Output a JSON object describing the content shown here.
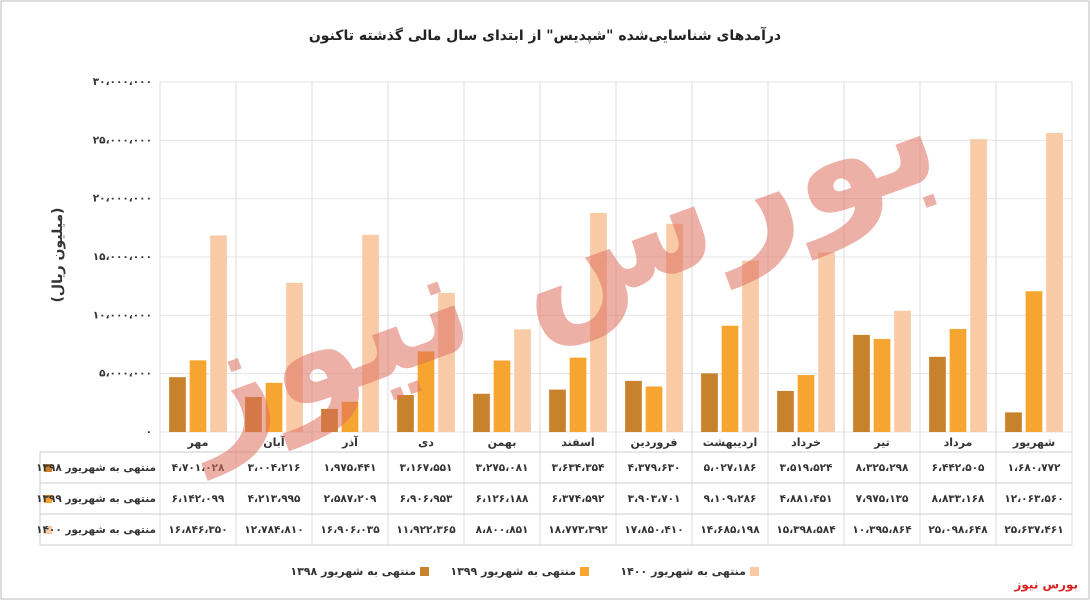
{
  "chart_data": {
    "type": "bar",
    "title": "درآمدهای شناسایی‌شده \"شپدیس\" از ابتدای سال مالی گذشته تاکنون",
    "y_label": "(میلیون ریال)",
    "watermark": "بورس نیوز",
    "source": "بورس نیوز",
    "categories": [
      "مهر",
      "آبان",
      "آذر",
      "دی",
      "بهمن",
      "اسفند",
      "فروردین",
      "اردیبهشت",
      "خرداد",
      "تیر",
      "مرداد",
      "شهریور"
    ],
    "series": [
      {
        "name": "منتهی به شهریور ۱۳۹۸",
        "color": "#c9822c",
        "values": [
          4701028,
          3004216,
          1975441,
          3167551,
          3275081,
          3634354,
          4379630,
          5027186,
          3519524,
          8325298,
          6442505,
          1680772
        ],
        "value_labels": [
          "۴،۷۰۱،۰۲۸",
          "۳،۰۰۴،۲۱۶",
          "۱،۹۷۵،۴۴۱",
          "۳،۱۶۷،۵۵۱",
          "۳،۲۷۵،۰۸۱",
          "۳،۶۳۴،۳۵۴",
          "۴،۳۷۹،۶۳۰",
          "۵،۰۲۷،۱۸۶",
          "۳،۵۱۹،۵۲۴",
          "۸،۳۲۵،۲۹۸",
          "۶،۴۴۲،۵۰۵",
          "۱،۶۸۰،۷۷۲"
        ]
      },
      {
        "name": "منتهی به شهریور ۱۳۹۹",
        "color": "#f5a530",
        "values": [
          6142099,
          4213995,
          2587209,
          6906953,
          6126188,
          6374592,
          3903701,
          9109286,
          4881451,
          7975135,
          8833168,
          12063560
        ],
        "value_labels": [
          "۶،۱۴۲،۰۹۹",
          "۴،۲۱۳،۹۹۵",
          "۲،۵۸۷،۲۰۹",
          "۶،۹۰۶،۹۵۳",
          "۶،۱۲۶،۱۸۸",
          "۶،۳۷۴،۵۹۲",
          "۳،۹۰۳،۷۰۱",
          "۹،۱۰۹،۲۸۶",
          "۴،۸۸۱،۴۵۱",
          "۷،۹۷۵،۱۳۵",
          "۸،۸۳۳،۱۶۸",
          "۱۲،۰۶۳،۵۶۰"
        ]
      },
      {
        "name": "منتهی به شهریور ۱۴۰۰",
        "color": "#f8cba6",
        "values": [
          16846350,
          12784810,
          16906035,
          11922365,
          8800851,
          18773392,
          17850410,
          14685198,
          15398584,
          10395864,
          25098648,
          25637461
        ],
        "value_labels": [
          "۱۶،۸۴۶،۳۵۰",
          "۱۲،۷۸۴،۸۱۰",
          "۱۶،۹۰۶،۰۳۵",
          "۱۱،۹۲۲،۳۶۵",
          "۸،۸۰۰،۸۵۱",
          "۱۸،۷۷۳،۳۹۲",
          "۱۷،۸۵۰،۴۱۰",
          "۱۴،۶۸۵،۱۹۸",
          "۱۵،۳۹۸،۵۸۴",
          "۱۰،۳۹۵،۸۶۴",
          "۲۵،۰۹۸،۶۴۸",
          "۲۵،۶۳۷،۴۶۱"
        ]
      }
    ],
    "ylim": [
      0,
      30000000
    ],
    "yticks": [
      {
        "value": 0,
        "label": "۰"
      },
      {
        "value": 5000000,
        "label": "۵،۰۰۰،۰۰۰"
      },
      {
        "value": 10000000,
        "label": "۱۰،۰۰۰،۰۰۰"
      },
      {
        "value": 15000000,
        "label": "۱۵،۰۰۰،۰۰۰"
      },
      {
        "value": 20000000,
        "label": "۲۰،۰۰۰،۰۰۰"
      },
      {
        "value": 25000000,
        "label": "۲۵،۰۰۰،۰۰۰"
      },
      {
        "value": 30000000,
        "label": "۳۰،۰۰۰،۰۰۰"
      }
    ],
    "grid": true
  }
}
